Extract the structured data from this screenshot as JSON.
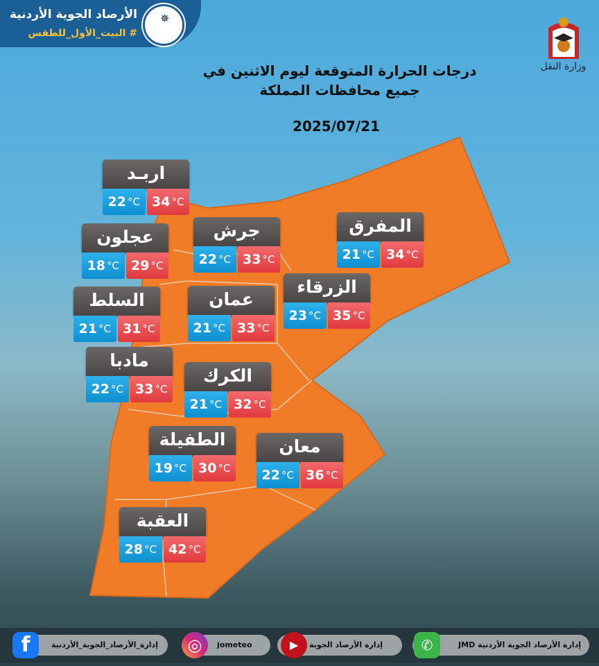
{
  "header": {
    "org_name": "الأرصاد الجوية الأردنية",
    "hashtag": "# البيت_الأول_للطقس"
  },
  "ministry_logo_text": "وزارة النقل",
  "title_line1": "درجات الحرارة المتوقعة ليوم الاثنين في",
  "title_line2": "جميع محافظات المملكة",
  "date": "2025/07/21",
  "unit": "°C",
  "colors": {
    "map": "#f07c28",
    "min_temp": "#1a9fe0",
    "max_temp": "#e8474b",
    "card_header": "#5a5656"
  },
  "governorates": [
    {
      "name": "اربـد",
      "min": "22",
      "max": "34"
    },
    {
      "name": "عجلون",
      "min": "18",
      "max": "29"
    },
    {
      "name": "جرش",
      "min": "22",
      "max": "33"
    },
    {
      "name": "المفرق",
      "min": "21",
      "max": "34"
    },
    {
      "name": "السلط",
      "min": "21",
      "max": "31"
    },
    {
      "name": "عمان",
      "min": "21",
      "max": "33"
    },
    {
      "name": "الزرقاء",
      "min": "23",
      "max": "35"
    },
    {
      "name": "مادبا",
      "min": "22",
      "max": "33"
    },
    {
      "name": "الكرك",
      "min": "21",
      "max": "32"
    },
    {
      "name": "الطفيلة",
      "min": "19",
      "max": "30"
    },
    {
      "name": "معان",
      "min": "22",
      "max": "36"
    },
    {
      "name": "العقبة",
      "min": "28",
      "max": "42"
    }
  ],
  "footer": {
    "facebook": "إدارة_الأرصاد_الجوية_الأردنية",
    "instagram": "jometeo",
    "youtube": "إدارة الأرصاد الجوية",
    "whatsapp": "إدارة الأرصاد الجوية الأردنية  JMD"
  }
}
